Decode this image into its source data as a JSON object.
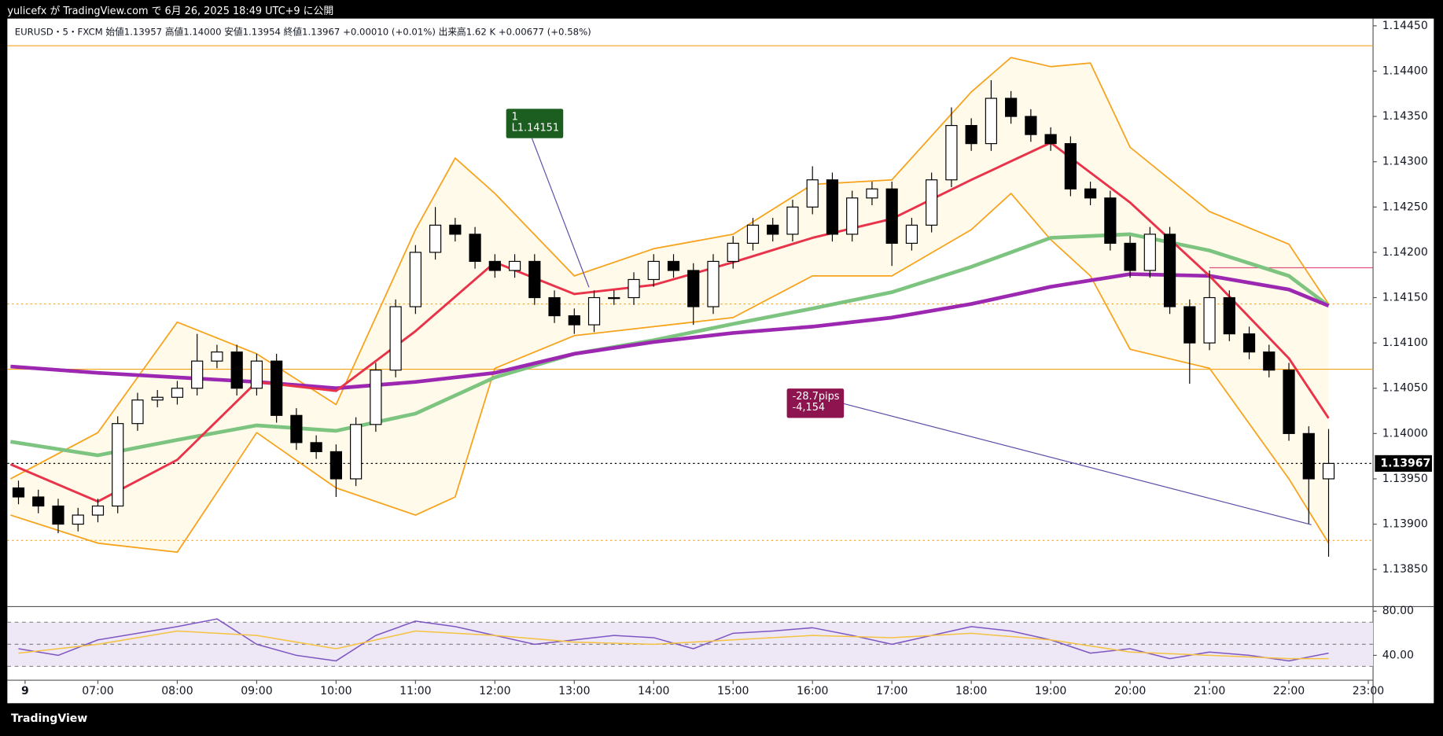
{
  "header": {
    "publisher": "yulicefx が TradingView.com で 6月 26, 2025 18:49 UTC+9 に公開",
    "footer": "TradingView"
  },
  "chart_data": {
    "type": "candlestick",
    "legend_text": "EURUSD・5・FXCM  始値1.13957  高値1.14000  安値1.13954  終値1.13967  +0.00010 (+0.01%)  出来高1.62 K  +0.00677 (+0.58%)",
    "up_color": "#ffffff",
    "down_color": "#000000",
    "x": [
      6,
      6.25,
      6.5,
      6.75,
      7,
      7.25,
      7.5,
      7.75,
      8,
      8.25,
      8.5,
      8.75,
      9,
      9.25,
      9.5,
      9.75,
      10,
      10.25,
      10.5,
      10.75,
      11,
      11.25,
      11.5,
      11.75,
      12,
      12.25,
      12.5,
      12.75,
      13,
      13.25,
      13.5,
      13.75,
      14,
      14.25,
      14.5,
      14.75,
      15,
      15.25,
      15.5,
      15.75,
      16,
      16.25,
      16.5,
      16.75,
      17,
      17.25,
      17.5,
      17.75,
      18,
      18.25,
      18.5,
      18.75,
      19,
      19.25,
      19.5,
      19.75,
      20,
      20.25,
      20.5,
      20.75,
      21,
      21.25,
      21.5,
      21.75,
      22,
      22.25,
      22.5
    ],
    "open": [
      1.1394,
      1.1393,
      1.1392,
      1.139,
      1.1391,
      1.1392,
      1.14011,
      1.14037,
      1.1404,
      1.1405,
      1.1408,
      1.1409,
      1.1405,
      1.1408,
      1.1402,
      1.1399,
      1.1398,
      1.1395,
      1.1401,
      1.1407,
      1.1414,
      1.142,
      1.1423,
      1.1422,
      1.1419,
      1.1418,
      1.1419,
      1.1415,
      1.1413,
      1.1412,
      1.1415,
      1.1415,
      1.1417,
      1.1419,
      1.1418,
      1.1414,
      1.1419,
      1.1421,
      1.1423,
      1.1422,
      1.1425,
      1.1428,
      1.1422,
      1.1426,
      1.1427,
      1.1421,
      1.1423,
      1.1428,
      1.1434,
      1.1432,
      1.1437,
      1.1435,
      1.1433,
      1.1432,
      1.1427,
      1.1426,
      1.1421,
      1.1418,
      1.1422,
      1.1414,
      1.141,
      1.1415,
      1.1411,
      1.1409,
      1.1407,
      1.14,
      1.1395
    ],
    "high": [
      1.13948,
      1.13938,
      1.13928,
      1.13918,
      1.13928,
      1.14019,
      1.14045,
      1.14048,
      1.14058,
      1.1411,
      1.14098,
      1.14098,
      1.14088,
      1.14088,
      1.14028,
      1.13998,
      1.13988,
      1.14018,
      1.14078,
      1.14148,
      1.14208,
      1.1425,
      1.14238,
      1.14228,
      1.14198,
      1.14198,
      1.14198,
      1.14158,
      1.14138,
      1.14158,
      1.14158,
      1.14178,
      1.14198,
      1.14198,
      1.14188,
      1.14198,
      1.14218,
      1.14238,
      1.14238,
      1.14258,
      1.14295,
      1.14288,
      1.14268,
      1.14278,
      1.14278,
      1.14238,
      1.14288,
      1.1436,
      1.14348,
      1.1439,
      1.14378,
      1.14358,
      1.14338,
      1.14328,
      1.14278,
      1.14268,
      1.14218,
      1.14228,
      1.14228,
      1.14148,
      1.1418,
      1.14158,
      1.14118,
      1.14098,
      1.14078,
      1.14008,
      1.14005
    ],
    "low": [
      1.13922,
      1.13912,
      1.1389,
      1.13892,
      1.13902,
      1.13912,
      1.14003,
      1.14029,
      1.14032,
      1.14042,
      1.14072,
      1.14042,
      1.14042,
      1.14012,
      1.13982,
      1.13972,
      1.1393,
      1.13942,
      1.14002,
      1.14062,
      1.14132,
      1.14192,
      1.14212,
      1.14182,
      1.14172,
      1.14172,
      1.14142,
      1.14122,
      1.1411,
      1.14112,
      1.14142,
      1.14142,
      1.14162,
      1.14172,
      1.1412,
      1.14132,
      1.14182,
      1.14202,
      1.14212,
      1.14212,
      1.14242,
      1.14212,
      1.14212,
      1.14252,
      1.14185,
      1.14202,
      1.14222,
      1.14272,
      1.14312,
      1.14312,
      1.14342,
      1.14322,
      1.14312,
      1.14262,
      1.14252,
      1.14202,
      1.14172,
      1.14172,
      1.14132,
      1.14055,
      1.14092,
      1.14102,
      1.14082,
      1.14062,
      1.13992,
      1.139,
      1.13864
    ],
    "close": [
      1.1393,
      1.1392,
      1.139,
      1.1391,
      1.1392,
      1.14011,
      1.14037,
      1.1404,
      1.1405,
      1.1408,
      1.1409,
      1.1405,
      1.1408,
      1.1402,
      1.1399,
      1.1398,
      1.1395,
      1.1401,
      1.1407,
      1.1414,
      1.142,
      1.1423,
      1.1422,
      1.1419,
      1.1418,
      1.1419,
      1.1415,
      1.1413,
      1.1412,
      1.1415,
      1.1415,
      1.1417,
      1.1419,
      1.1418,
      1.1414,
      1.1419,
      1.1421,
      1.1423,
      1.1422,
      1.1425,
      1.1428,
      1.1422,
      1.1426,
      1.1427,
      1.1421,
      1.1423,
      1.1428,
      1.1434,
      1.1432,
      1.1437,
      1.1435,
      1.1433,
      1.1432,
      1.1427,
      1.1426,
      1.1421,
      1.1418,
      1.1422,
      1.1414,
      1.141,
      1.1415,
      1.1411,
      1.1409,
      1.1407,
      1.14,
      1.1395,
      1.13967
    ],
    "lines": [
      {
        "color": "#f7a21b",
        "width": 1.5,
        "x": [
          5.9,
          7,
          8,
          9,
          10,
          11,
          11.5,
          12,
          13,
          14,
          15,
          16,
          17,
          18,
          18.5,
          19,
          19.5,
          20,
          21,
          22,
          22.5
        ],
        "values": [
          1.1395,
          1.14001,
          1.14123,
          1.14088,
          1.14032,
          1.14225,
          1.14304,
          1.14265,
          1.14174,
          1.14204,
          1.1422,
          1.14275,
          1.1428,
          1.14377,
          1.14415,
          1.14405,
          1.14409,
          1.14316,
          1.14245,
          1.14209,
          1.14143
        ]
      },
      {
        "color": "#f7a21b",
        "width": 1.5,
        "x": [
          5.9,
          7,
          8,
          9,
          10,
          11,
          11.5,
          12,
          13,
          14,
          15,
          16,
          17,
          18,
          18.5,
          19,
          19.5,
          20,
          21,
          22,
          22.5
        ],
        "values": [
          1.1391,
          1.13879,
          1.13869,
          1.14001,
          1.1394,
          1.1391,
          1.1393,
          1.14072,
          1.14108,
          1.14118,
          1.14128,
          1.14174,
          1.14174,
          1.14225,
          1.14265,
          1.14214,
          1.14174,
          1.14093,
          1.14072,
          1.1395,
          1.13879
        ]
      },
      {
        "color": "#7cc47f",
        "width": 4,
        "x": [
          5.9,
          7,
          8,
          9,
          10,
          11,
          12,
          13,
          14,
          15,
          16,
          17,
          18,
          19,
          20,
          21,
          22,
          22.5
        ],
        "values": [
          1.13991,
          1.13976,
          1.13993,
          1.14009,
          1.14003,
          1.14022,
          1.14062,
          1.14088,
          1.14103,
          1.14121,
          1.14138,
          1.14156,
          1.14184,
          1.14216,
          1.1422,
          1.14202,
          1.14174,
          1.14141
        ]
      },
      {
        "color": "#9c27b0",
        "width": 4,
        "x": [
          5.9,
          7,
          8,
          9,
          10,
          11,
          12,
          13,
          14,
          15,
          16,
          17,
          18,
          19,
          20,
          21,
          22,
          22.5
        ],
        "values": [
          1.14074,
          1.14067,
          1.14062,
          1.14057,
          1.1405,
          1.14057,
          1.14067,
          1.14088,
          1.14101,
          1.14111,
          1.14118,
          1.14128,
          1.14143,
          1.14162,
          1.14176,
          1.14174,
          1.14159,
          1.14141
        ]
      },
      {
        "color": "#e8334a",
        "width": 2.5,
        "x": [
          5.9,
          7,
          8,
          9,
          10,
          11,
          12,
          13,
          14,
          15,
          16,
          17,
          18,
          19,
          20,
          21,
          22,
          22.5
        ],
        "values": [
          1.13966,
          1.13925,
          1.13971,
          1.14057,
          1.14047,
          1.14113,
          1.14189,
          1.14154,
          1.14164,
          1.14189,
          1.14216,
          1.14237,
          1.1428,
          1.14321,
          1.14255,
          1.14174,
          1.14083,
          1.14017
        ]
      }
    ],
    "levels": [
      {
        "value": 1.14428,
        "color": "#f7a21b",
        "dash": false
      },
      {
        "value": 1.14071,
        "color": "#f7a21b",
        "dash": false
      },
      {
        "value": 1.14143,
        "color": "#f7a21b",
        "dash": true
      },
      {
        "value": 1.13882,
        "color": "#f7a21b",
        "dash": true
      },
      {
        "value": 1.13967,
        "color": "#000000",
        "dash": true
      },
      {
        "value": 1.14183,
        "color": "#e05080",
        "dash": false,
        "from": 21
      }
    ],
    "last_price": {
      "value": 1.13967,
      "label": "1.13967"
    },
    "xlim": [
      5.86,
      23.06
    ],
    "ylim": [
      1.1381,
      1.14458
    ],
    "xticks": [
      {
        "value": 6.083,
        "label": "9"
      },
      {
        "value": 7,
        "label": "07:00"
      },
      {
        "value": 8,
        "label": "08:00"
      },
      {
        "value": 9,
        "label": "09:00"
      },
      {
        "value": 10,
        "label": "10:00"
      },
      {
        "value": 11,
        "label": "11:00"
      },
      {
        "value": 12,
        "label": "12:00"
      },
      {
        "value": 13,
        "label": "13:00"
      },
      {
        "value": 14,
        "label": "14:00"
      },
      {
        "value": 15,
        "label": "15:00"
      },
      {
        "value": 16,
        "label": "16:00"
      },
      {
        "value": 17,
        "label": "17:00"
      },
      {
        "value": 18,
        "label": "18:00"
      },
      {
        "value": 19,
        "label": "19:00"
      },
      {
        "value": 20,
        "label": "20:00"
      },
      {
        "value": 21,
        "label": "21:00"
      },
      {
        "value": 22,
        "label": "22:00"
      },
      {
        "value": 23,
        "label": "23:00"
      }
    ],
    "yticks": [
      {
        "value": 1.1385,
        "label": "1.13850"
      },
      {
        "value": 1.139,
        "label": "1.13900"
      },
      {
        "value": 1.1395,
        "label": "1.13950"
      },
      {
        "value": 1.14,
        "label": "1.14000"
      },
      {
        "value": 1.1405,
        "label": "1.14050"
      },
      {
        "value": 1.141,
        "label": "1.14100"
      },
      {
        "value": 1.1415,
        "label": "1.14150"
      },
      {
        "value": 1.142,
        "label": "1.14200"
      },
      {
        "value": 1.1425,
        "label": "1.14250"
      },
      {
        "value": 1.143,
        "label": "1.14300"
      },
      {
        "value": 1.1435,
        "label": "1.14350"
      },
      {
        "value": 1.144,
        "label": "1.14400"
      },
      {
        "value": 1.1445,
        "label": "1.14450"
      }
    ],
    "annotations": [
      {
        "lines": [
          "1",
          "L1.14151"
        ],
        "color": "#1b5e20"
      },
      {
        "lines": [
          "-28.7pips",
          "-4,154"
        ],
        "color": "#8e1450"
      }
    ],
    "rsi": {
      "ylim": [
        18.3,
        83.3
      ],
      "yticks": [
        {
          "value": 80,
          "label": "80.00"
        },
        {
          "value": 40,
          "label": "40.00"
        }
      ],
      "levels": [
        70,
        50,
        30
      ],
      "series": [
        {
          "color": "#7e57c2",
          "x": [
            6,
            6.5,
            7,
            7.5,
            8,
            8.5,
            9,
            9.5,
            10,
            10.5,
            11,
            11.5,
            12,
            12.5,
            13,
            13.5,
            14,
            14.5,
            15,
            15.5,
            16,
            16.5,
            17,
            17.5,
            18,
            18.5,
            19,
            19.5,
            20,
            20.5,
            21,
            21.5,
            22,
            22.5
          ],
          "values": [
            46,
            40,
            54,
            60,
            66,
            73,
            50,
            40,
            35,
            58,
            71,
            66,
            58,
            50,
            54,
            58,
            56,
            46,
            60,
            62,
            65,
            58,
            50,
            58,
            66,
            62,
            54,
            42,
            46,
            37,
            43,
            40,
            35,
            42
          ]
        },
        {
          "color": "#f5c242",
          "x": [
            6,
            7,
            8,
            9,
            10,
            11,
            12,
            13,
            14,
            15,
            16,
            17,
            18,
            19,
            20,
            21,
            22,
            22.5
          ],
          "values": [
            42,
            50,
            62,
            58,
            46,
            62,
            58,
            52,
            50,
            54,
            58,
            56,
            60,
            54,
            43,
            40,
            37,
            37
          ]
        }
      ]
    }
  }
}
